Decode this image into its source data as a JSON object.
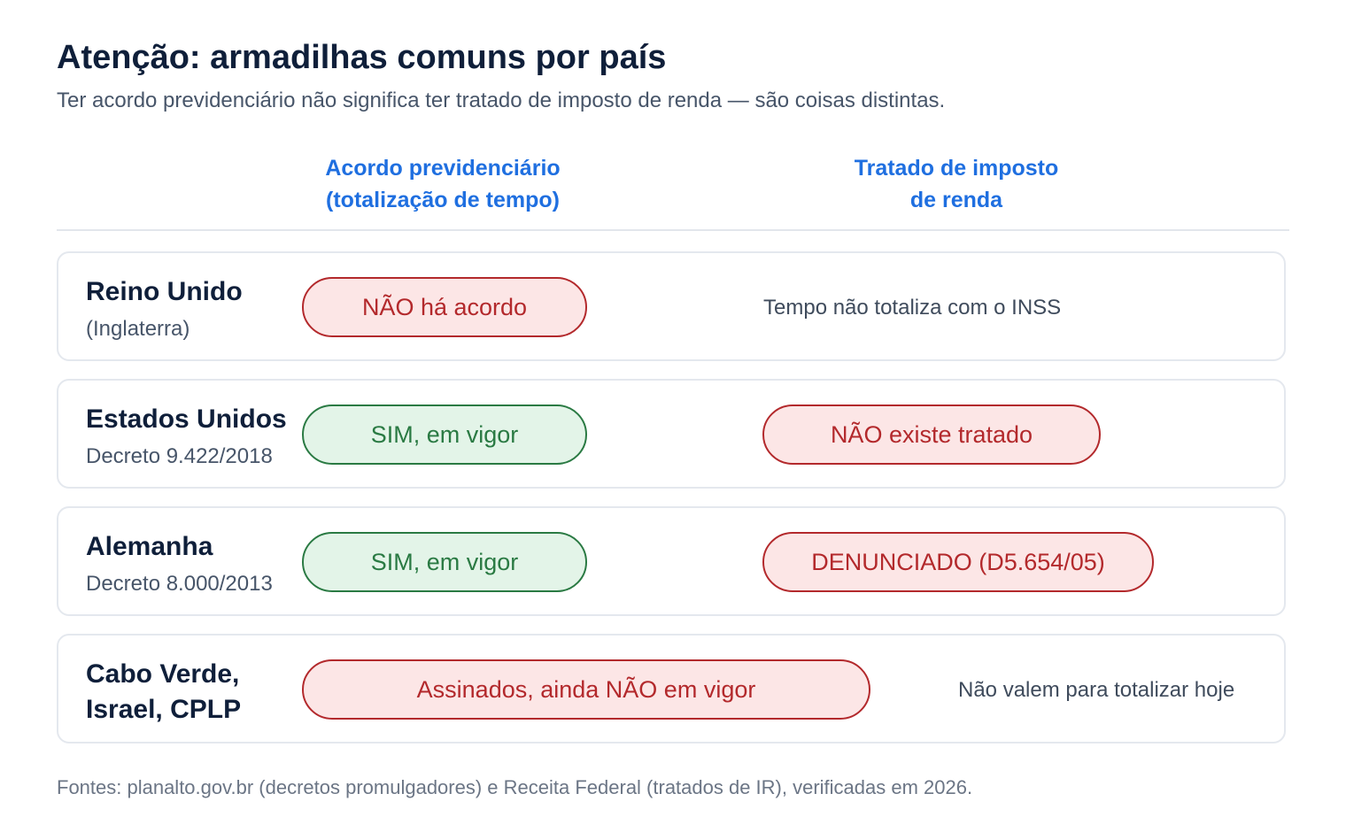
{
  "header": {
    "title": "Atenção: armadilhas comuns por país",
    "subtitle": "Ter acordo previdenciário não significa ter tratado de imposto de renda — são coisas distintas."
  },
  "columns": {
    "col1": "Acordo previdenciário\n(totalização de tempo)",
    "col2": "Tratado de imposto\nde renda"
  },
  "rows": [
    {
      "country": "Reino Unido",
      "subtitle": "(Inglaterra)",
      "acordo": "NÃO há acordo",
      "tratado_note": "Tempo não totaliza com o INSS"
    },
    {
      "country": "Estados Unidos",
      "subtitle": "Decreto 9.422/2018",
      "acordo": "SIM, em vigor",
      "tratado": "NÃO existe tratado"
    },
    {
      "country": "Alemanha",
      "subtitle": "Decreto 8.000/2013",
      "acordo": "SIM, em vigor",
      "tratado": "DENUNCIADO (D5.654/05)"
    },
    {
      "country": "Cabo Verde,\nIsrael, CPLP",
      "acordo": "Assinados, ainda NÃO em vigor",
      "tratado_note": "Não valem para totalizar hoje"
    }
  ],
  "footer": "Fontes: planalto.gov.br (decretos promulgadores) e Receita Federal (tratados de IR), verificadas em 2026.",
  "colors": {
    "accent": "#1f6fe0",
    "negative": "#b3292c",
    "negative_bg": "#fce6e6",
    "positive": "#2a7a43",
    "positive_bg": "#e3f4e8"
  }
}
